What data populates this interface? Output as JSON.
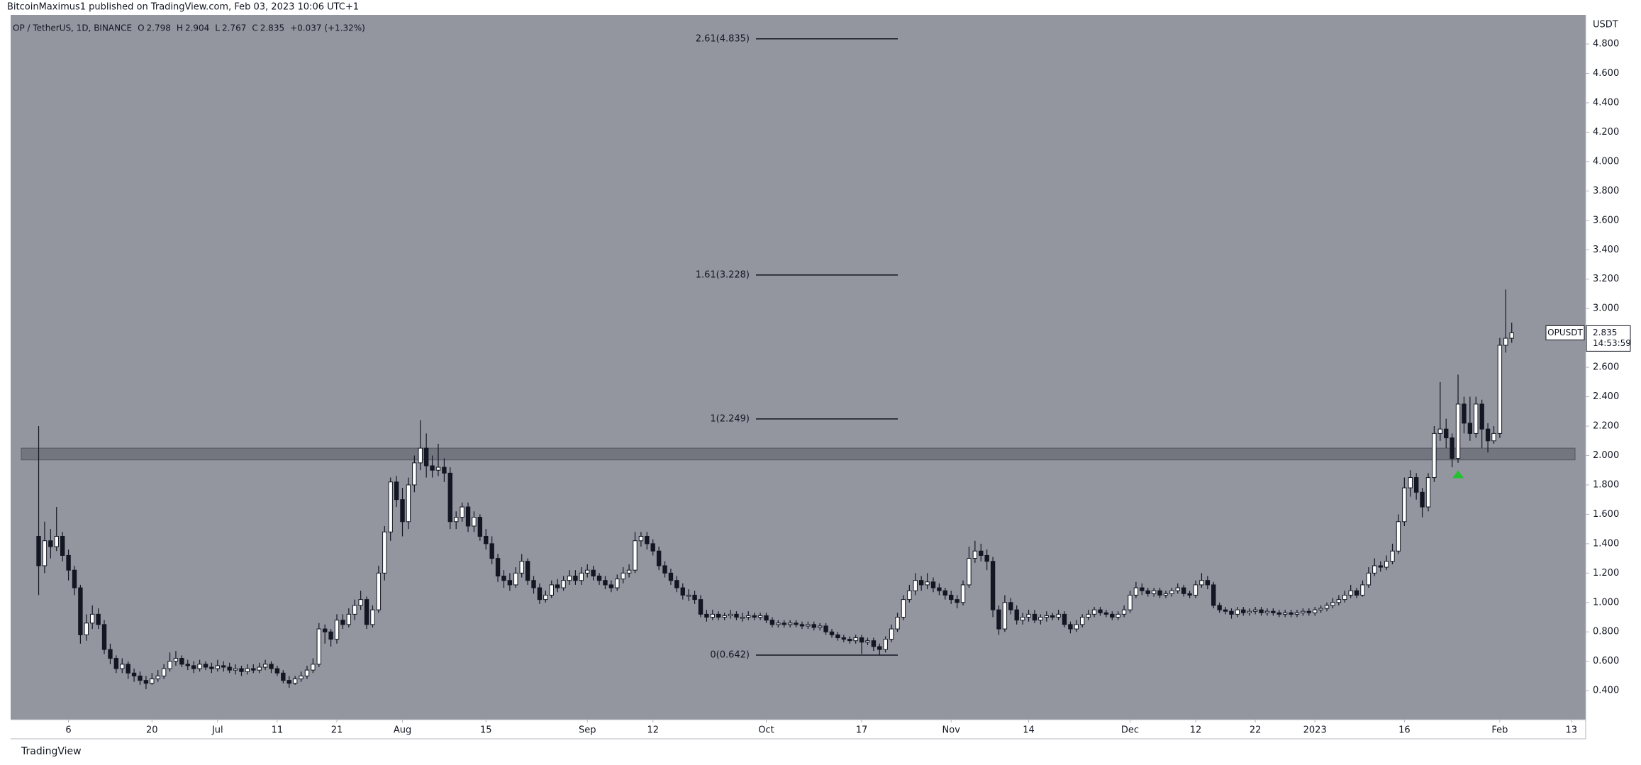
{
  "author_line": "BitcoinMaximus1 published on TradingView.com, Feb 03, 2023 10:06 UTC+1",
  "footer": "TradingView",
  "chart_data": {
    "type": "candlestick",
    "header": {
      "symbol": "OP / TetherUS, 1D, BINANCE",
      "ohlc": [
        [
          "O",
          "2.798"
        ],
        [
          "H",
          "2.904"
        ],
        [
          "L",
          "2.767"
        ],
        [
          "C",
          "2.835"
        ]
      ],
      "change": "+0.037 (+1.32%)"
    },
    "y_axis_unit": "USDT",
    "background": "#93959f",
    "up_color": "#ffffff",
    "down_color": "#131722",
    "xlim": [
      -4.7,
      259.4
    ],
    "xticks": [
      {
        "value": 5,
        "label": "6"
      },
      {
        "value": 19,
        "label": "20"
      },
      {
        "value": 30,
        "label": "Jul"
      },
      {
        "value": 40,
        "label": "11"
      },
      {
        "value": 50,
        "label": "21"
      },
      {
        "value": 61,
        "label": "Aug"
      },
      {
        "value": 75,
        "label": "15"
      },
      {
        "value": 92,
        "label": "Sep"
      },
      {
        "value": 103,
        "label": "12"
      },
      {
        "value": 122,
        "label": "Oct"
      },
      {
        "value": 138,
        "label": "17"
      },
      {
        "value": 153,
        "label": "Nov"
      },
      {
        "value": 166,
        "label": "14"
      },
      {
        "value": 183,
        "label": "Dec"
      },
      {
        "value": 194,
        "label": "12"
      },
      {
        "value": 204,
        "label": "22"
      },
      {
        "value": 214,
        "label": "2023"
      },
      {
        "value": 229,
        "label": "16"
      },
      {
        "value": 245,
        "label": "Feb"
      },
      {
        "value": 257,
        "label": "13"
      }
    ],
    "ylim": [
      0.203,
      4.998
    ],
    "yticks": [
      {
        "value": 0.4,
        "label": "0.400"
      },
      {
        "value": 0.6,
        "label": "0.600"
      },
      {
        "value": 0.8,
        "label": "0.800"
      },
      {
        "value": 1.0,
        "label": "1.000"
      },
      {
        "value": 1.2,
        "label": "1.200"
      },
      {
        "value": 1.4,
        "label": "1.400"
      },
      {
        "value": 1.6,
        "label": "1.600"
      },
      {
        "value": 1.8,
        "label": "1.800"
      },
      {
        "value": 2.0,
        "label": "2.000"
      },
      {
        "value": 2.2,
        "label": "2.200"
      },
      {
        "value": 2.4,
        "label": "2.400"
      },
      {
        "value": 2.6,
        "label": "2.600"
      },
      {
        "value": 2.8,
        "label": "2.800"
      },
      {
        "value": 3.0,
        "label": "3.000"
      },
      {
        "value": 3.2,
        "label": "3.200"
      },
      {
        "value": 3.4,
        "label": "3.400"
      },
      {
        "value": 3.6,
        "label": "3.600"
      },
      {
        "value": 3.8,
        "label": "3.800"
      },
      {
        "value": 4.0,
        "label": "4.000"
      },
      {
        "value": 4.2,
        "label": "4.200"
      },
      {
        "value": 4.4,
        "label": "4.400"
      },
      {
        "value": 4.6,
        "label": "4.600"
      },
      {
        "value": 4.8,
        "label": "4.800"
      }
    ],
    "series": [
      {
        "name": "OPUSDT",
        "open": [
          1.45,
          1.25,
          1.42,
          1.38,
          1.45,
          1.32,
          1.22,
          1.1,
          0.78,
          0.86,
          0.92,
          0.85,
          0.68,
          0.62,
          0.55,
          0.58,
          0.52,
          0.5,
          0.47,
          0.45,
          0.48,
          0.5,
          0.55,
          0.6,
          0.62,
          0.58,
          0.57,
          0.55,
          0.58,
          0.56,
          0.55,
          0.57,
          0.56,
          0.54,
          0.55,
          0.53,
          0.55,
          0.54,
          0.56,
          0.58,
          0.55,
          0.52,
          0.47,
          0.45,
          0.48,
          0.5,
          0.54,
          0.58,
          0.82,
          0.8,
          0.75,
          0.88,
          0.85,
          0.92,
          0.98,
          1.02,
          0.85,
          0.95,
          1.2,
          1.48,
          1.82,
          1.7,
          1.55,
          1.8,
          1.95,
          2.05,
          1.93,
          1.9,
          1.92,
          1.88,
          1.55,
          1.58,
          1.65,
          1.52,
          1.58,
          1.45,
          1.4,
          1.3,
          1.18,
          1.15,
          1.12,
          1.2,
          1.28,
          1.15,
          1.1,
          1.02,
          1.05,
          1.12,
          1.1,
          1.15,
          1.18,
          1.15,
          1.2,
          1.22,
          1.18,
          1.15,
          1.12,
          1.1,
          1.16,
          1.2,
          1.22,
          1.42,
          1.45,
          1.4,
          1.35,
          1.25,
          1.2,
          1.15,
          1.1,
          1.05,
          1.05,
          1.02,
          0.92,
          0.9,
          0.92,
          0.9,
          0.91,
          0.92,
          0.9,
          0.9,
          0.91,
          0.9,
          0.91,
          0.88,
          0.85,
          0.86,
          0.85,
          0.86,
          0.85,
          0.84,
          0.85,
          0.83,
          0.84,
          0.8,
          0.78,
          0.76,
          0.75,
          0.74,
          0.76,
          0.73,
          0.74,
          0.7,
          0.68,
          0.75,
          0.82,
          0.9,
          1.02,
          1.08,
          1.15,
          1.12,
          1.14,
          1.1,
          1.08,
          1.05,
          1.02,
          1.0,
          1.12,
          1.3,
          1.35,
          1.32,
          1.28,
          0.95,
          0.82,
          1.0,
          0.95,
          0.88,
          0.9,
          0.92,
          0.88,
          0.9,
          0.91,
          0.9,
          0.92,
          0.85,
          0.82,
          0.85,
          0.9,
          0.92,
          0.95,
          0.93,
          0.92,
          0.9,
          0.92,
          0.95,
          1.05,
          1.1,
          1.08,
          1.06,
          1.08,
          1.05,
          1.06,
          1.08,
          1.1,
          1.06,
          1.05,
          1.12,
          1.15,
          1.12,
          0.98,
          0.95,
          0.94,
          0.92,
          0.95,
          0.93,
          0.94,
          0.95,
          0.93,
          0.94,
          0.93,
          0.92,
          0.93,
          0.92,
          0.93,
          0.94,
          0.93,
          0.95,
          0.96,
          0.98,
          1.0,
          1.02,
          1.05,
          1.08,
          1.05,
          1.12,
          1.2,
          1.25,
          1.24,
          1.28,
          1.35,
          1.55,
          1.78,
          1.85,
          1.75,
          1.65,
          1.85,
          2.15,
          2.18,
          2.12,
          1.98,
          2.35,
          2.22,
          2.15,
          2.35,
          2.18,
          2.1,
          2.15,
          2.75,
          2.798
        ],
        "high": [
          2.2,
          1.55,
          1.5,
          1.65,
          1.48,
          1.36,
          1.25,
          1.12,
          0.92,
          0.98,
          0.96,
          0.88,
          0.72,
          0.64,
          0.62,
          0.6,
          0.55,
          0.53,
          0.5,
          0.52,
          0.54,
          0.58,
          0.66,
          0.67,
          0.64,
          0.61,
          0.6,
          0.61,
          0.6,
          0.59,
          0.61,
          0.6,
          0.59,
          0.58,
          0.57,
          0.58,
          0.58,
          0.59,
          0.61,
          0.6,
          0.57,
          0.54,
          0.5,
          0.5,
          0.53,
          0.57,
          0.62,
          0.86,
          0.85,
          0.82,
          0.92,
          0.92,
          0.96,
          1.02,
          1.08,
          1.04,
          0.98,
          1.25,
          1.52,
          1.85,
          1.86,
          1.78,
          1.85,
          2.0,
          2.24,
          2.15,
          2.0,
          2.08,
          1.98,
          1.92,
          1.62,
          1.68,
          1.68,
          1.62,
          1.6,
          1.5,
          1.45,
          1.33,
          1.22,
          1.2,
          1.24,
          1.33,
          1.3,
          1.18,
          1.13,
          1.08,
          1.15,
          1.16,
          1.18,
          1.22,
          1.22,
          1.24,
          1.26,
          1.25,
          1.2,
          1.18,
          1.15,
          1.19,
          1.24,
          1.26,
          1.48,
          1.48,
          1.48,
          1.43,
          1.38,
          1.28,
          1.23,
          1.18,
          1.13,
          1.09,
          1.08,
          1.05,
          0.95,
          0.95,
          0.94,
          0.93,
          0.95,
          0.94,
          0.93,
          0.94,
          0.93,
          0.93,
          0.93,
          0.9,
          0.88,
          0.88,
          0.88,
          0.88,
          0.87,
          0.87,
          0.87,
          0.86,
          0.86,
          0.82,
          0.8,
          0.78,
          0.77,
          0.78,
          0.78,
          0.76,
          0.76,
          0.72,
          0.77,
          0.85,
          0.93,
          1.05,
          1.12,
          1.2,
          1.18,
          1.2,
          1.17,
          1.13,
          1.1,
          1.08,
          1.05,
          1.15,
          1.38,
          1.42,
          1.4,
          1.36,
          1.31,
          0.98,
          1.05,
          1.03,
          0.98,
          0.93,
          0.95,
          0.95,
          0.92,
          0.94,
          0.93,
          0.95,
          0.94,
          0.87,
          0.88,
          0.92,
          0.95,
          0.97,
          0.97,
          0.95,
          0.94,
          0.94,
          0.98,
          1.08,
          1.14,
          1.13,
          1.1,
          1.1,
          1.1,
          1.08,
          1.1,
          1.13,
          1.12,
          1.08,
          1.15,
          1.2,
          1.18,
          1.14,
          1.0,
          0.97,
          0.96,
          0.97,
          0.97,
          0.96,
          0.97,
          0.97,
          0.96,
          0.96,
          0.95,
          0.95,
          0.95,
          0.95,
          0.96,
          0.96,
          0.97,
          0.98,
          1.0,
          1.03,
          1.05,
          1.08,
          1.12,
          1.1,
          1.15,
          1.24,
          1.3,
          1.28,
          1.32,
          1.4,
          1.6,
          1.85,
          1.9,
          1.88,
          1.78,
          1.88,
          2.2,
          2.5,
          2.25,
          2.15,
          2.55,
          2.4,
          2.4,
          2.4,
          2.38,
          2.22,
          2.2,
          2.8,
          3.13,
          2.904
        ],
        "low": [
          1.05,
          1.2,
          1.3,
          1.35,
          1.28,
          1.15,
          1.05,
          0.72,
          0.74,
          0.82,
          0.82,
          0.65,
          0.58,
          0.52,
          0.52,
          0.48,
          0.46,
          0.44,
          0.41,
          0.44,
          0.46,
          0.48,
          0.53,
          0.57,
          0.56,
          0.54,
          0.52,
          0.53,
          0.54,
          0.52,
          0.53,
          0.53,
          0.52,
          0.51,
          0.5,
          0.51,
          0.52,
          0.52,
          0.54,
          0.52,
          0.5,
          0.45,
          0.42,
          0.44,
          0.46,
          0.48,
          0.52,
          0.56,
          0.72,
          0.7,
          0.72,
          0.82,
          0.83,
          0.88,
          0.95,
          0.82,
          0.83,
          0.93,
          1.15,
          1.42,
          1.65,
          1.45,
          1.5,
          1.75,
          1.9,
          1.85,
          1.85,
          1.86,
          1.82,
          1.5,
          1.5,
          1.55,
          1.48,
          1.48,
          1.42,
          1.36,
          1.26,
          1.14,
          1.1,
          1.08,
          1.1,
          1.17,
          1.12,
          1.06,
          0.99,
          1.0,
          1.03,
          1.07,
          1.08,
          1.12,
          1.12,
          1.12,
          1.17,
          1.15,
          1.12,
          1.09,
          1.07,
          1.08,
          1.13,
          1.17,
          1.2,
          1.38,
          1.36,
          1.32,
          1.22,
          1.17,
          1.12,
          1.07,
          1.02,
          1.01,
          0.99,
          0.9,
          0.87,
          0.88,
          0.88,
          0.88,
          0.89,
          0.88,
          0.87,
          0.88,
          0.88,
          0.88,
          0.86,
          0.83,
          0.83,
          0.83,
          0.83,
          0.83,
          0.82,
          0.82,
          0.81,
          0.81,
          0.78,
          0.76,
          0.74,
          0.73,
          0.72,
          0.72,
          0.65,
          0.71,
          0.67,
          0.64,
          0.66,
          0.73,
          0.8,
          0.88,
          1.0,
          1.05,
          1.08,
          1.09,
          1.07,
          1.05,
          1.02,
          0.99,
          0.96,
          0.98,
          1.1,
          1.27,
          1.28,
          1.22,
          0.9,
          0.78,
          0.8,
          0.92,
          0.85,
          0.85,
          0.87,
          0.86,
          0.85,
          0.87,
          0.88,
          0.88,
          0.83,
          0.79,
          0.8,
          0.83,
          0.88,
          0.9,
          0.91,
          0.9,
          0.88,
          0.88,
          0.9,
          0.93,
          1.03,
          1.05,
          1.04,
          1.04,
          1.03,
          1.03,
          1.04,
          1.06,
          1.04,
          1.03,
          1.03,
          1.1,
          1.09,
          0.96,
          0.93,
          0.92,
          0.89,
          0.9,
          0.91,
          0.91,
          0.92,
          0.91,
          0.91,
          0.91,
          0.9,
          0.9,
          0.9,
          0.9,
          0.91,
          0.91,
          0.91,
          0.93,
          0.94,
          0.96,
          0.98,
          1.0,
          1.03,
          1.03,
          1.04,
          1.1,
          1.18,
          1.21,
          1.22,
          1.26,
          1.33,
          1.52,
          1.72,
          1.7,
          1.58,
          1.62,
          1.82,
          2.1,
          2.05,
          1.92,
          1.95,
          2.15,
          2.1,
          2.12,
          2.05,
          2.02,
          2.08,
          2.12,
          2.7,
          2.767
        ],
        "close": [
          1.25,
          1.42,
          1.38,
          1.45,
          1.32,
          1.22,
          1.1,
          0.78,
          0.86,
          0.92,
          0.85,
          0.68,
          0.62,
          0.55,
          0.58,
          0.52,
          0.5,
          0.47,
          0.45,
          0.48,
          0.5,
          0.55,
          0.6,
          0.62,
          0.58,
          0.57,
          0.55,
          0.58,
          0.56,
          0.55,
          0.57,
          0.56,
          0.54,
          0.55,
          0.53,
          0.55,
          0.54,
          0.56,
          0.58,
          0.55,
          0.52,
          0.47,
          0.45,
          0.48,
          0.5,
          0.54,
          0.58,
          0.82,
          0.8,
          0.75,
          0.88,
          0.85,
          0.92,
          0.98,
          1.02,
          0.85,
          0.95,
          1.2,
          1.48,
          1.82,
          1.7,
          1.55,
          1.8,
          1.95,
          2.05,
          1.93,
          1.9,
          1.92,
          1.88,
          1.55,
          1.58,
          1.65,
          1.52,
          1.58,
          1.45,
          1.4,
          1.3,
          1.18,
          1.15,
          1.12,
          1.2,
          1.28,
          1.15,
          1.1,
          1.02,
          1.05,
          1.12,
          1.1,
          1.15,
          1.18,
          1.15,
          1.2,
          1.22,
          1.18,
          1.15,
          1.12,
          1.1,
          1.16,
          1.2,
          1.22,
          1.42,
          1.45,
          1.4,
          1.35,
          1.25,
          1.2,
          1.15,
          1.1,
          1.05,
          1.05,
          1.02,
          0.92,
          0.9,
          0.92,
          0.9,
          0.91,
          0.92,
          0.9,
          0.9,
          0.91,
          0.9,
          0.91,
          0.88,
          0.85,
          0.86,
          0.85,
          0.86,
          0.85,
          0.84,
          0.85,
          0.83,
          0.84,
          0.8,
          0.78,
          0.76,
          0.75,
          0.74,
          0.76,
          0.73,
          0.74,
          0.7,
          0.68,
          0.75,
          0.82,
          0.9,
          1.02,
          1.08,
          1.15,
          1.12,
          1.14,
          1.1,
          1.08,
          1.05,
          1.02,
          1.0,
          1.12,
          1.3,
          1.35,
          1.32,
          1.28,
          0.95,
          0.82,
          1.0,
          0.95,
          0.88,
          0.9,
          0.92,
          0.88,
          0.9,
          0.91,
          0.9,
          0.92,
          0.85,
          0.82,
          0.85,
          0.9,
          0.92,
          0.95,
          0.93,
          0.92,
          0.9,
          0.92,
          0.95,
          1.05,
          1.1,
          1.08,
          1.06,
          1.08,
          1.05,
          1.06,
          1.08,
          1.1,
          1.06,
          1.05,
          1.12,
          1.15,
          1.12,
          0.98,
          0.95,
          0.94,
          0.92,
          0.95,
          0.93,
          0.94,
          0.95,
          0.93,
          0.94,
          0.93,
          0.92,
          0.93,
          0.92,
          0.93,
          0.94,
          0.93,
          0.95,
          0.96,
          0.98,
          1.0,
          1.02,
          1.05,
          1.08,
          1.05,
          1.12,
          1.2,
          1.25,
          1.24,
          1.28,
          1.35,
          1.55,
          1.78,
          1.85,
          1.75,
          1.65,
          1.85,
          2.15,
          2.18,
          2.12,
          1.98,
          2.35,
          2.22,
          2.15,
          2.35,
          2.18,
          2.1,
          2.15,
          2.75,
          2.798,
          2.835
        ]
      }
    ],
    "fib_levels": [
      {
        "value": 4.835,
        "label": "2.61(4.835)"
      },
      {
        "value": 3.228,
        "label": "1.61(3.228)"
      },
      {
        "value": 2.249,
        "label": "1(2.249)"
      },
      {
        "value": 0.642,
        "label": "0(0.642)"
      }
    ],
    "zone": [
      1.97,
      2.05
    ],
    "arrow": {
      "index": 238,
      "value": 1.87,
      "color": "#22c32e"
    },
    "price_label": {
      "price": "2.835",
      "countdown": "14:53:59"
    }
  }
}
